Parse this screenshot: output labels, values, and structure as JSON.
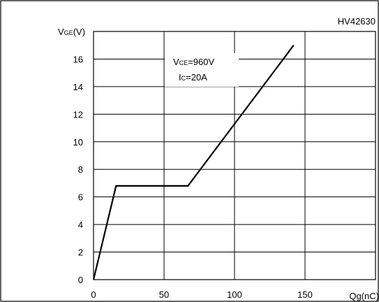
{
  "chart_data": {
    "type": "line",
    "code": "HV42630",
    "ylabel": {
      "main": "V",
      "sub": "GE",
      "unit": "(V)"
    },
    "xlabel": "Qg(nC)",
    "xlim": [
      0,
      200
    ],
    "ylim": [
      0,
      18
    ],
    "x_ticks": [
      0,
      50,
      100,
      150
    ],
    "y_ticks": [
      0,
      2,
      4,
      6,
      8,
      10,
      12,
      14,
      16
    ],
    "grid": true,
    "annotations": [
      {
        "main": "V",
        "sub": "CE",
        "rest": "=960V"
      },
      {
        "main": "I",
        "sub": "C",
        "rest": "=20A"
      }
    ],
    "series": [
      {
        "x": [
          0,
          16,
          67,
          142
        ],
        "y": [
          0,
          6.8,
          6.8,
          17
        ]
      }
    ],
    "colors": {
      "line": "#000000",
      "grid": "#000000",
      "background": "#ffffff"
    }
  }
}
